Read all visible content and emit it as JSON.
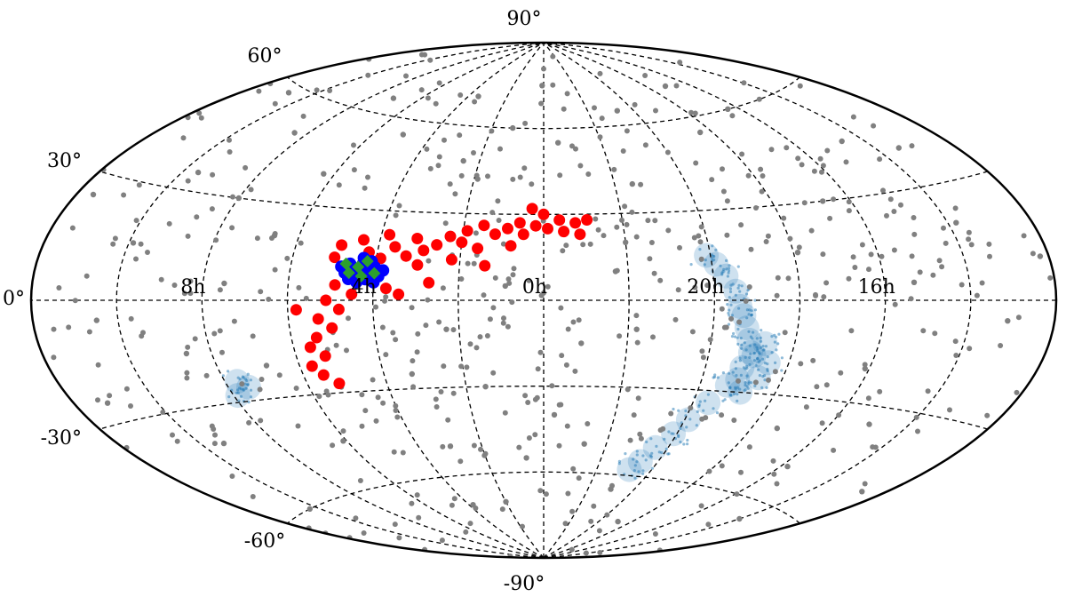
{
  "chart_data": {
    "type": "scatter",
    "projection": "aitoff",
    "title": "",
    "xlabel": "",
    "ylabel": "",
    "grid": true,
    "lat_ticks": [
      {
        "value": 90,
        "label": "90°"
      },
      {
        "value": 60,
        "label": "60°"
      },
      {
        "value": 30,
        "label": "30°"
      },
      {
        "value": 0,
        "label": "0°"
      },
      {
        "value": -30,
        "label": "-30°"
      },
      {
        "value": -60,
        "label": "-60°"
      },
      {
        "value": -90,
        "label": "-90°"
      }
    ],
    "lon_ticks": [
      {
        "value": 8,
        "label": "8h"
      },
      {
        "value": 4,
        "label": "4h"
      },
      {
        "value": 0,
        "label": "0h"
      },
      {
        "value": 20,
        "label": "20h"
      },
      {
        "value": 16,
        "label": "16h"
      }
    ],
    "series": [
      {
        "marker": "density",
        "color": "#1f77b4",
        "points_ra_dec": [
          [
            20.1,
            15
          ],
          [
            19.9,
            12
          ],
          [
            19.7,
            8
          ],
          [
            19.5,
            3
          ],
          [
            19.4,
            -2
          ],
          [
            19.3,
            -5
          ],
          [
            19.2,
            -9
          ],
          [
            19.1,
            -13
          ],
          [
            19.0,
            -17
          ],
          [
            19.1,
            -22
          ],
          [
            19.3,
            -28
          ],
          [
            19.6,
            -34
          ],
          [
            19.9,
            -40
          ],
          [
            20.1,
            -45
          ],
          [
            20.4,
            -50
          ],
          [
            20.6,
            -55
          ],
          [
            20.8,
            -58
          ],
          [
            18.9,
            -18
          ],
          [
            18.7,
            -14
          ],
          [
            18.5,
            -20
          ],
          [
            18.6,
            -25
          ],
          [
            18.9,
            -30
          ],
          [
            19.1,
            -26
          ],
          [
            7.7,
            -24
          ],
          [
            7.9,
            -28
          ],
          [
            7.5,
            -26
          ]
        ]
      },
      {
        "marker": "circle",
        "color": "#ff0000",
        "points_ra_dec": [
          [
            0.3,
            32
          ],
          [
            0.0,
            30
          ],
          [
            23.6,
            28
          ],
          [
            23.2,
            27
          ],
          [
            22.9,
            28
          ],
          [
            0.6,
            27
          ],
          [
            0.2,
            26
          ],
          [
            23.9,
            25
          ],
          [
            23.5,
            24
          ],
          [
            23.1,
            23
          ],
          [
            0.5,
            23
          ],
          [
            0.9,
            25
          ],
          [
            1.2,
            23
          ],
          [
            1.5,
            26
          ],
          [
            1.9,
            24
          ],
          [
            2.3,
            22
          ],
          [
            2.0,
            20
          ],
          [
            1.6,
            18
          ],
          [
            2.6,
            19
          ],
          [
            2.9,
            17
          ],
          [
            3.1,
            21
          ],
          [
            3.3,
            15
          ],
          [
            3.0,
            12
          ],
          [
            3.6,
            18
          ],
          [
            3.9,
            14
          ],
          [
            4.2,
            16
          ],
          [
            4.6,
            12
          ],
          [
            4.3,
            9
          ],
          [
            4.0,
            6
          ],
          [
            3.7,
            4
          ],
          [
            4.5,
            2
          ],
          [
            4.9,
            5
          ],
          [
            5.1,
            0
          ],
          [
            4.8,
            -3
          ],
          [
            5.3,
            -6
          ],
          [
            5.0,
            -9
          ],
          [
            5.4,
            -12
          ],
          [
            5.6,
            -15
          ],
          [
            5.3,
            -18
          ],
          [
            5.7,
            -21
          ],
          [
            5.5,
            -24
          ],
          [
            5.2,
            -27
          ],
          [
            5.8,
            -3
          ],
          [
            4.4,
            20
          ],
          [
            3.8,
            22
          ],
          [
            4.9,
            18
          ],
          [
            5.0,
            14
          ],
          [
            2.2,
            14
          ],
          [
            1.4,
            12
          ],
          [
            0.8,
            19
          ],
          [
            2.7,
            6
          ],
          [
            3.4,
            2
          ]
        ]
      },
      {
        "marker": "circle",
        "color": "#0000ff",
        "points_ra_dec": [
          [
            4.3,
            10
          ],
          [
            4.2,
            11
          ],
          [
            4.4,
            9
          ],
          [
            4.5,
            10
          ],
          [
            4.1,
            9
          ],
          [
            4.3,
            12
          ],
          [
            4.6,
            12
          ],
          [
            4.0,
            11
          ],
          [
            4.5,
            8
          ],
          [
            4.2,
            7
          ],
          [
            4.7,
            9
          ],
          [
            3.9,
            8
          ],
          [
            4.4,
            6
          ],
          [
            4.1,
            13
          ],
          [
            4.6,
            7
          ],
          [
            3.8,
            10
          ],
          [
            4.8,
            11
          ],
          [
            4.3,
            14
          ],
          [
            4.0,
            6
          ]
        ]
      },
      {
        "marker": "diamond",
        "color": "#2ca02c",
        "points_ra_dec": [
          [
            4.2,
            13
          ],
          [
            4.4,
            11
          ],
          [
            4.6,
            9
          ],
          [
            4.3,
            8
          ],
          [
            4.7,
            12
          ],
          [
            4.0,
            9
          ]
        ]
      },
      {
        "marker": "circle",
        "color": "#808080",
        "points_ra_dec": [
          [
            0.1,
            75
          ],
          [
            1.2,
            60
          ],
          [
            2.5,
            48
          ],
          [
            3.5,
            70
          ],
          [
            5.0,
            55
          ],
          [
            6.3,
            40
          ],
          [
            7.1,
            65
          ],
          [
            8.4,
            50
          ],
          [
            9.6,
            35
          ],
          [
            10.8,
            58
          ],
          [
            11.6,
            25
          ],
          [
            12.2,
            10
          ],
          [
            13.1,
            -5
          ],
          [
            13.8,
            20
          ],
          [
            14.6,
            45
          ],
          [
            15.3,
            5
          ],
          [
            16.1,
            -20
          ],
          [
            16.7,
            30
          ],
          [
            17.3,
            -40
          ],
          [
            17.9,
            15
          ],
          [
            18.4,
            55
          ],
          [
            21.5,
            40
          ],
          [
            22.3,
            10
          ],
          [
            23.1,
            -15
          ],
          [
            23.7,
            -40
          ],
          [
            0.6,
            -55
          ],
          [
            1.5,
            -30
          ],
          [
            2.3,
            -10
          ],
          [
            3.0,
            -50
          ],
          [
            3.8,
            -70
          ],
          [
            6.1,
            -45
          ],
          [
            6.8,
            -20
          ],
          [
            7.5,
            5
          ],
          [
            8.6,
            -15
          ],
          [
            9.4,
            -40
          ],
          [
            10.3,
            -60
          ],
          [
            11.2,
            -25
          ],
          [
            12.6,
            -50
          ],
          [
            14.0,
            -65
          ],
          [
            15.0,
            -35
          ],
          [
            16.4,
            60
          ],
          [
            17.1,
            70
          ],
          [
            21.0,
            -65
          ],
          [
            22.7,
            -50
          ],
          [
            23.5,
            55
          ],
          [
            0.9,
            5
          ],
          [
            2.0,
            -70
          ],
          [
            9.9,
            15
          ],
          [
            10.5,
            -5
          ],
          [
            20.7,
            65
          ],
          [
            21.8,
            -10
          ],
          [
            22.0,
            20
          ],
          [
            15.8,
            -50
          ],
          [
            13.4,
            40
          ],
          [
            6.6,
            20
          ],
          [
            1.9,
            42
          ],
          [
            3.3,
            -25
          ],
          [
            8.0,
            30
          ],
          [
            11.9,
            70
          ],
          [
            18.8,
            -75
          ]
        ]
      }
    ]
  }
}
